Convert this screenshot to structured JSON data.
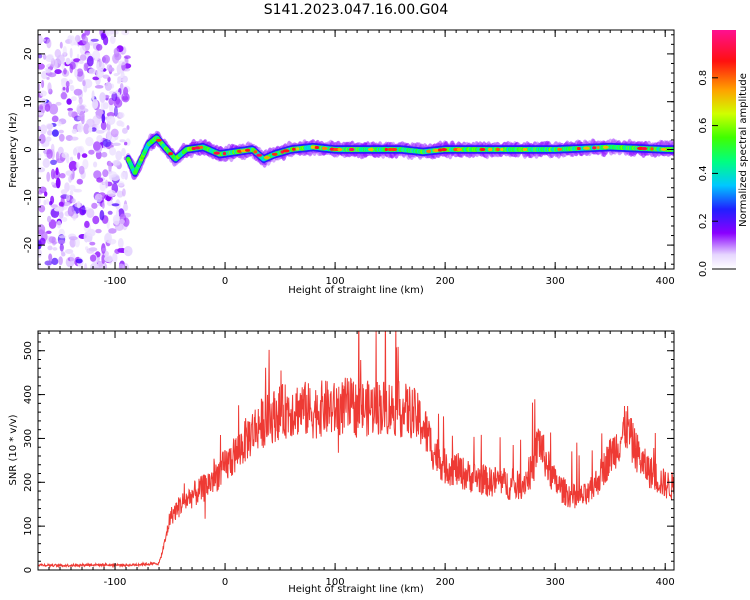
{
  "title": "S141.2023.047.16.00.G04",
  "colors": {
    "snr_line": "#ee3a34",
    "heat_low": "#d8c8ff",
    "heat_mid": "#6a00ff",
    "heat_high": "#e8174d"
  },
  "chart_data": [
    {
      "type": "heatmap",
      "title": "S141.2023.047.16.00.G04",
      "xlabel": "Height of straight line (km)",
      "ylabel": "Frequency (Hz)",
      "xlim": [
        -170,
        408
      ],
      "ylim": [
        -25,
        25
      ],
      "x_ticks": [
        -100,
        0,
        100,
        200,
        300,
        400
      ],
      "y_ticks": [
        -20,
        -10,
        0,
        10,
        20
      ],
      "colorbar": {
        "label": "Normalized spectral amplitude",
        "range": [
          0,
          1
        ],
        "ticks": [
          0.0,
          0.2,
          0.4,
          0.6,
          0.8
        ],
        "colormap": "white-violet-blue-cyan-green-yellow-orange-red-pink"
      },
      "noise_region": {
        "x": [
          -170,
          -88
        ],
        "y": [
          -25,
          25
        ],
        "amplitude": [
          0.0,
          0.2
        ]
      },
      "signal_ridge": [
        {
          "x": -88,
          "freq": -2.0
        },
        {
          "x": -82,
          "freq": -5.0
        },
        {
          "x": -76,
          "freq": -2.0
        },
        {
          "x": -70,
          "freq": 1.0
        },
        {
          "x": -62,
          "freq": 2.5
        },
        {
          "x": -55,
          "freq": 0.5
        },
        {
          "x": -45,
          "freq": -2.0
        },
        {
          "x": -35,
          "freq": 0.0
        },
        {
          "x": -20,
          "freq": 0.5
        },
        {
          "x": -5,
          "freq": -1.0
        },
        {
          "x": 10,
          "freq": -0.5
        },
        {
          "x": 25,
          "freq": 0.0
        },
        {
          "x": 35,
          "freq": -2.0
        },
        {
          "x": 45,
          "freq": -1.0
        },
        {
          "x": 60,
          "freq": 0.0
        },
        {
          "x": 80,
          "freq": 0.5
        },
        {
          "x": 100,
          "freq": 0.0
        },
        {
          "x": 130,
          "freq": 0.0
        },
        {
          "x": 160,
          "freq": 0.0
        },
        {
          "x": 180,
          "freq": -0.5
        },
        {
          "x": 200,
          "freq": 0.0
        },
        {
          "x": 250,
          "freq": 0.0
        },
        {
          "x": 300,
          "freq": 0.0
        },
        {
          "x": 350,
          "freq": 0.5
        },
        {
          "x": 400,
          "freq": 0.0
        }
      ]
    },
    {
      "type": "line",
      "xlabel": "Height of straight line (km)",
      "ylabel": "SNR (10 * v/v)",
      "xlim": [
        -170,
        408
      ],
      "ylim": [
        0,
        545
      ],
      "x_ticks": [
        -100,
        0,
        100,
        200,
        300,
        400
      ],
      "y_ticks": [
        0,
        100,
        200,
        300,
        400,
        500
      ],
      "series": [
        {
          "x": [
            -170,
            -150,
            -120,
            -90,
            -60,
            -55,
            -50,
            -40,
            -30,
            -20,
            -10,
            0,
            10,
            20,
            30,
            40,
            50,
            60,
            70,
            80,
            90,
            100,
            110,
            120,
            130,
            140,
            150,
            160,
            170,
            180,
            190,
            200,
            210,
            220,
            230,
            240,
            250,
            260,
            270,
            280,
            285,
            290,
            295,
            300,
            310,
            320,
            330,
            340,
            350,
            360,
            365,
            370,
            380,
            390,
            400,
            408
          ],
          "values": [
            12,
            10,
            12,
            11,
            15,
            60,
            120,
            150,
            170,
            185,
            210,
            235,
            265,
            300,
            330,
            345,
            360,
            365,
            370,
            360,
            370,
            365,
            375,
            370,
            368,
            372,
            370,
            365,
            360,
            330,
            270,
            235,
            230,
            215,
            210,
            200,
            205,
            190,
            195,
            230,
            300,
            260,
            225,
            200,
            175,
            165,
            170,
            210,
            260,
            300,
            330,
            290,
            240,
            215,
            195,
            190
          ]
        }
      ]
    }
  ]
}
